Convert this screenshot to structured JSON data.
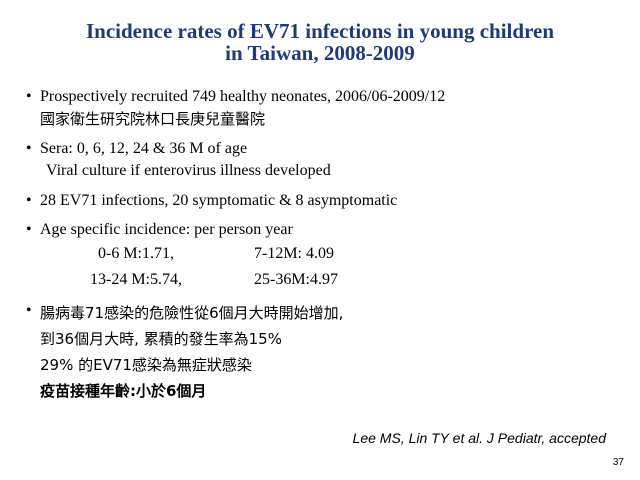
{
  "title": {
    "line1": "Incidence rates of EV71 infections in young children",
    "line2": "in Taiwan, 2008-2009"
  },
  "bullets": {
    "recruitment": {
      "line1": "Prospectively recruited 749 healthy neonates, 2006/06-2009/12",
      "line2": "國家衛生研究院林口長庚兒童醫院"
    },
    "sera": {
      "line1": "Sera: 0, 6, 12, 24 & 36 M of age",
      "line2": "Viral culture if enterovirus illness developed"
    },
    "infections": {
      "line1": "28 EV71 infections, 20 symptomatic & 8 asymptomatic"
    },
    "incidence": {
      "heading": "Age specific incidence: per person year",
      "row1_a": "0-6 M:1.71,",
      "row1_b": "7-12M: 4.09",
      "row2_a": "13-24 M:5.74,",
      "row2_b": "25-36M:4.97"
    },
    "chinese_summary": {
      "line1": "腸病毒71感染的危險性從6個月大時開始增加,",
      "line2": "到36個月大時, 累積的發生率為15%",
      "line3": "29% 的EV71感染為無症狀感染",
      "line4": "疫苗接種年齡:小於6個月"
    }
  },
  "bullet_symbol": "•",
  "citation": "Lee MS, Lin TY et al. J Pediatr, accepted",
  "page_number": "37",
  "colors": {
    "title": "#1f3a7a",
    "text": "#000000",
    "background": "#ffffff"
  }
}
